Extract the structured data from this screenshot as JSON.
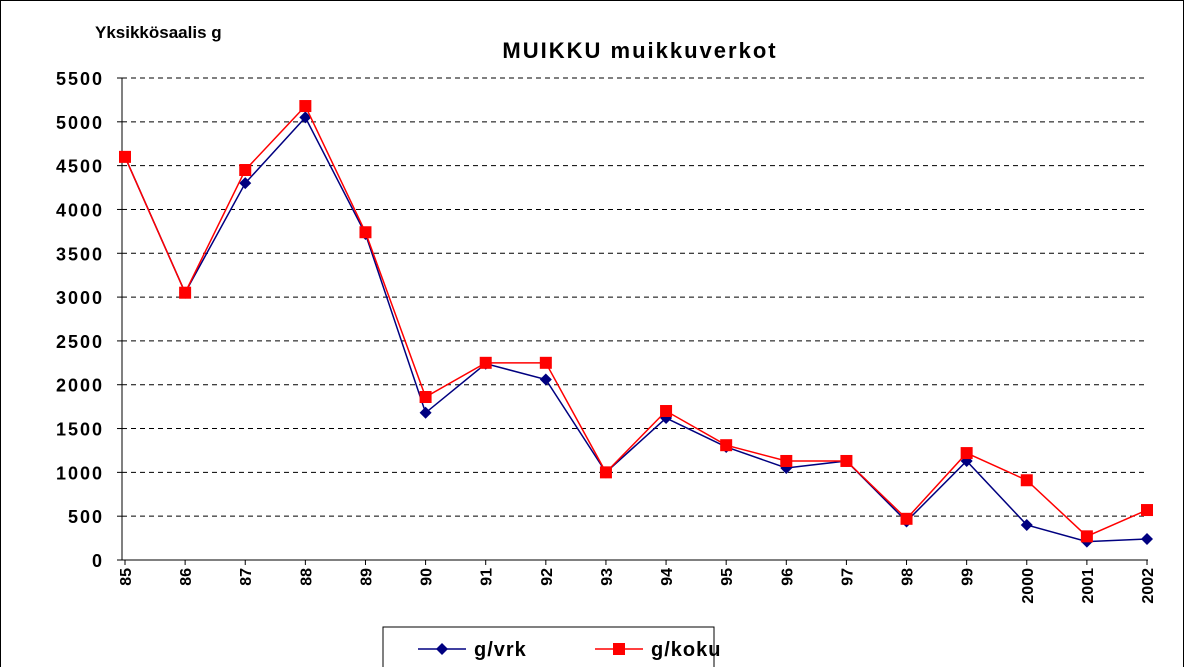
{
  "chart_data": {
    "type": "line",
    "title": "MUIKKU muikkuverkot",
    "y_label": "Yksikkösaalis g",
    "categories": [
      "85",
      "86",
      "87",
      "88",
      "89",
      "90",
      "91",
      "92",
      "93",
      "94",
      "95",
      "96",
      "97",
      "98",
      "99",
      "2000",
      "2001",
      "2002"
    ],
    "series": [
      {
        "name": "g/vrk",
        "color": "#000080",
        "marker": "diamond",
        "values": [
          4600,
          3050,
          4300,
          5050,
          3720,
          1680,
          2240,
          2060,
          1000,
          1620,
          1290,
          1050,
          1130,
          440,
          1130,
          400,
          210,
          240
        ]
      },
      {
        "name": "g/koku",
        "color": "#ff0000",
        "marker": "square",
        "values": [
          4600,
          3050,
          4450,
          5180,
          3740,
          1860,
          2250,
          2250,
          1000,
          1700,
          1310,
          1130,
          1130,
          470,
          1220,
          910,
          270,
          570
        ]
      }
    ],
    "ylim": [
      0,
      5500
    ],
    "yticks": [
      0,
      500,
      1000,
      1500,
      2000,
      2500,
      3000,
      3500,
      4000,
      4500,
      5000,
      5500
    ],
    "grid": true,
    "legend": "bottom"
  }
}
